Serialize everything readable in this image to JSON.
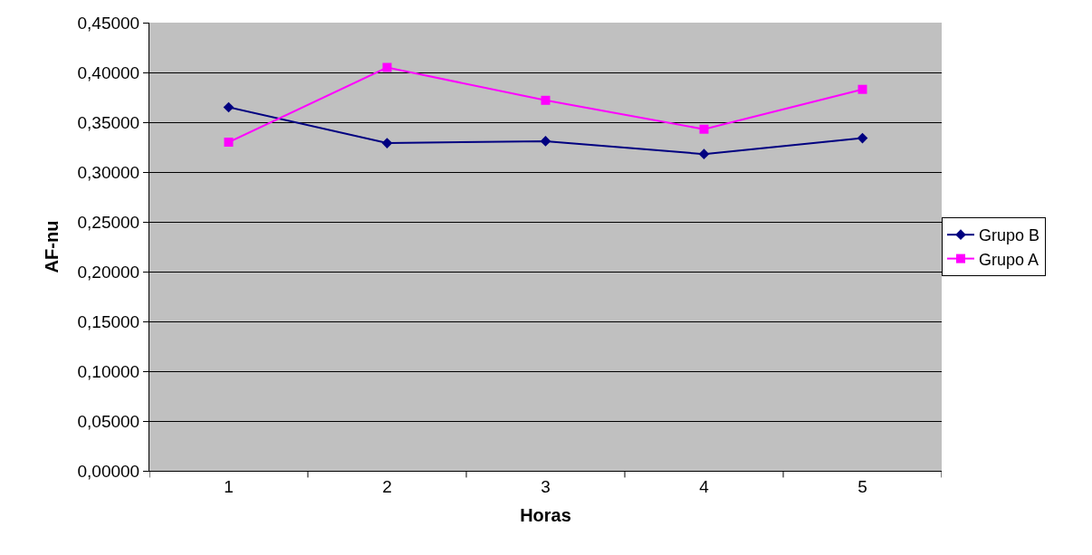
{
  "chart_data": {
    "type": "line",
    "xlabel": "Horas",
    "ylabel": "AF-nu",
    "categories": [
      "1",
      "2",
      "3",
      "4",
      "5"
    ],
    "series": [
      {
        "name": "Grupo B",
        "color": "#000080",
        "marker": "diamond",
        "values": [
          0.365,
          0.329,
          0.331,
          0.318,
          0.334
        ]
      },
      {
        "name": "Grupo A",
        "color": "#ff00ff",
        "marker": "square",
        "values": [
          0.33,
          0.405,
          0.372,
          0.343,
          0.383
        ]
      }
    ],
    "ylim": [
      0,
      0.45
    ],
    "yticks": [
      {
        "value": 0,
        "label": "0,00000"
      },
      {
        "value": 0.05,
        "label": "0,05000"
      },
      {
        "value": 0.1,
        "label": "0,10000"
      },
      {
        "value": 0.15,
        "label": "0,15000"
      },
      {
        "value": 0.2,
        "label": "0,20000"
      },
      {
        "value": 0.25,
        "label": "0,25000"
      },
      {
        "value": 0.3,
        "label": "0,30000"
      },
      {
        "value": 0.35,
        "label": "0,35000"
      },
      {
        "value": 0.4,
        "label": "0,40000"
      },
      {
        "value": 0.45,
        "label": "0,45000"
      }
    ],
    "grid": "y",
    "legend": "right",
    "line_style": "solid"
  }
}
